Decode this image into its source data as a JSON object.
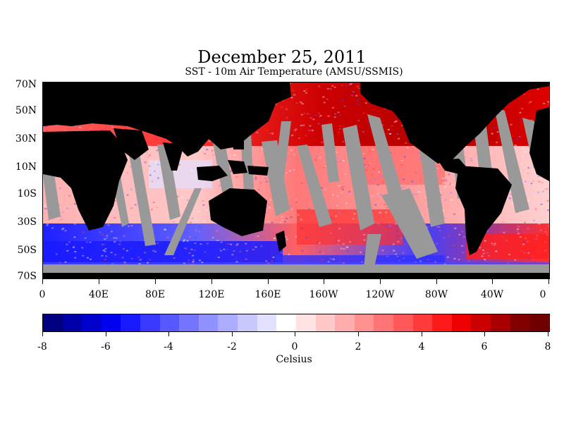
{
  "title": "December 25, 2011",
  "subtitle": "SST - 10m Air Temperature (AMSU/SSMIS)",
  "lat_labels": [
    "70N",
    "50N",
    "30N",
    "10N",
    "10S",
    "30S",
    "50S",
    "70S"
  ],
  "lon_labels": [
    "0",
    "40E",
    "80E",
    "120E",
    "160E",
    "160W",
    "120W",
    "80W",
    "40W",
    "0"
  ],
  "colorbar": {
    "labels": [
      "-8",
      "-6",
      "-4",
      "-2",
      "0",
      "2",
      "4",
      "6",
      "8"
    ],
    "units": "Celsius",
    "range": [
      -8,
      8
    ],
    "colors": [
      "#000080",
      "#0000a8",
      "#0000cc",
      "#0000ee",
      "#1a1aff",
      "#3a3aff",
      "#5858ff",
      "#7474ff",
      "#9090ff",
      "#acacff",
      "#c8c8ff",
      "#e2e2ff",
      "#ffffff",
      "#ffe2e2",
      "#ffc8c8",
      "#ffacac",
      "#ff9090",
      "#ff7474",
      "#ff5858",
      "#ff3a3a",
      "#ff1a1a",
      "#ee0000",
      "#cc0000",
      "#a80000",
      "#800000",
      "#700000"
    ]
  },
  "legend_colors": {
    "land": "#000000",
    "no_data": "#999999"
  }
}
